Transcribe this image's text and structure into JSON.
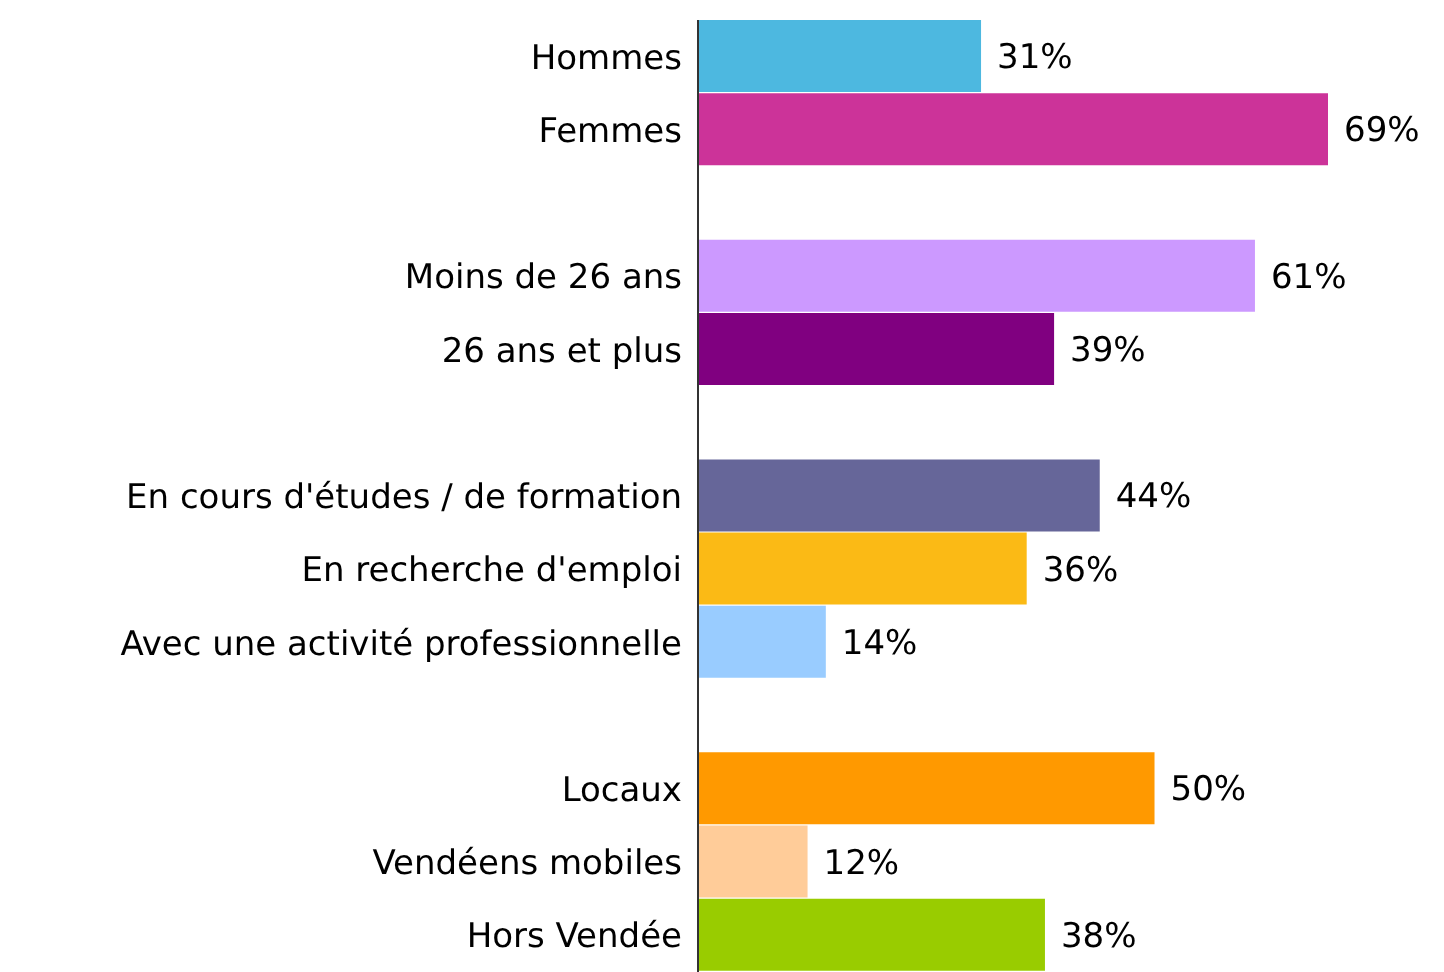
{
  "chart_data": {
    "type": "bar",
    "orientation": "horizontal",
    "categories": [
      "Hommes",
      "Femmes",
      null,
      "Moins de 26 ans",
      "26 ans et plus",
      null,
      "En cours d'études / de formation",
      "En recherche d'emploi",
      "Avec une activité professionnelle",
      null,
      "Locaux",
      "Vendéens mobiles",
      "Hors Vendée"
    ],
    "values": [
      31,
      69,
      null,
      61,
      39,
      null,
      44,
      36,
      14,
      null,
      50,
      12,
      38
    ],
    "value_labels": [
      "31%",
      "69%",
      null,
      "61%",
      "39%",
      null,
      "44%",
      "36%",
      "14%",
      null,
      "50%",
      "12%",
      "38%"
    ],
    "colors": [
      "#4db8e0",
      "#cc3399",
      null,
      "#cc99ff",
      "#800080",
      null,
      "#666699",
      "#fbba15",
      "#99ccff",
      null,
      "#ff9900",
      "#ffcc99",
      "#99cc00"
    ],
    "legend": false,
    "grid": false
  }
}
